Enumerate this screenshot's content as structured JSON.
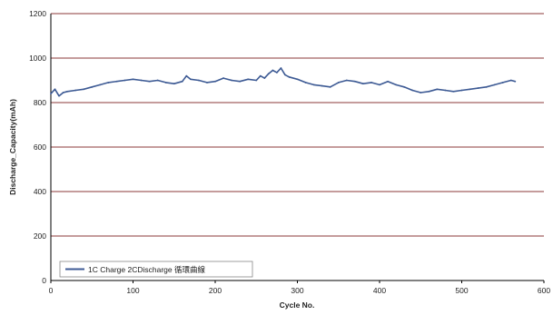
{
  "chart_data": {
    "type": "line",
    "xlabel": "Cycle No.",
    "ylabel": "Discharge_Capacity(mAh)",
    "xlim": [
      0,
      600
    ],
    "ylim": [
      0,
      1200
    ],
    "x_ticks": [
      "0",
      "100",
      "200",
      "300",
      "400",
      "500",
      "600"
    ],
    "y_ticks": [
      "0",
      "200",
      "400",
      "600",
      "800",
      "1000",
      "1200"
    ],
    "grid": "horizontal",
    "gridline_color": "#8b3a3a",
    "legend_position": "bottom-left",
    "series": [
      {
        "name": "1C Charge 2CDischarge 循環曲線",
        "color": "#3d5a94",
        "x": [
          0,
          5,
          10,
          15,
          20,
          30,
          40,
          50,
          60,
          70,
          80,
          90,
          100,
          110,
          120,
          130,
          140,
          150,
          160,
          165,
          170,
          180,
          190,
          200,
          210,
          220,
          230,
          240,
          250,
          255,
          260,
          265,
          270,
          275,
          280,
          285,
          290,
          300,
          310,
          320,
          330,
          340,
          350,
          360,
          370,
          380,
          390,
          400,
          410,
          420,
          430,
          440,
          450,
          460,
          470,
          480,
          490,
          500,
          510,
          520,
          530,
          540,
          550,
          560,
          565
        ],
        "y": [
          840,
          860,
          830,
          845,
          850,
          855,
          860,
          870,
          880,
          890,
          895,
          900,
          905,
          900,
          895,
          900,
          890,
          885,
          895,
          920,
          905,
          900,
          890,
          895,
          910,
          900,
          895,
          905,
          900,
          920,
          910,
          930,
          945,
          935,
          955,
          925,
          915,
          905,
          890,
          880,
          875,
          870,
          890,
          900,
          895,
          885,
          890,
          880,
          895,
          880,
          870,
          855,
          845,
          850,
          860,
          855,
          850,
          855,
          860,
          865,
          870,
          880,
          890,
          900,
          895
        ]
      }
    ]
  }
}
